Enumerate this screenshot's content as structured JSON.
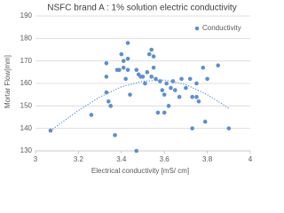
{
  "chart_data": {
    "type": "scatter",
    "title": "NSFC brand A : 1% solution electric conductivity",
    "x_label": "Electrical conductivity [mS/ cm]",
    "y_label": "Mortar Flow[mm]",
    "xlim": [
      3,
      4
    ],
    "xticks": [
      3,
      3.2,
      3.4,
      3.6,
      3.8,
      4
    ],
    "ylim": [
      130,
      190
    ],
    "yticks": [
      130,
      140,
      150,
      160,
      170,
      180,
      190
    ],
    "grid": true,
    "legend": "top-right",
    "series": [
      {
        "name": "Conductivity",
        "color": "#5b8fd0",
        "x": [
          3.07,
          3.26,
          3.33,
          3.33,
          3.33,
          3.34,
          3.35,
          3.37,
          3.38,
          3.39,
          3.4,
          3.41,
          3.41,
          3.42,
          3.43,
          3.43,
          3.43,
          3.44,
          3.47,
          3.47,
          3.48,
          3.49,
          3.5,
          3.51,
          3.52,
          3.53,
          3.54,
          3.54,
          3.55,
          3.55,
          3.56,
          3.57,
          3.58,
          3.59,
          3.6,
          3.6,
          3.61,
          3.62,
          3.63,
          3.64,
          3.65,
          3.67,
          3.68,
          3.7,
          3.72,
          3.73,
          3.73,
          3.75,
          3.76,
          3.78,
          3.79,
          3.8,
          3.85,
          3.9,
          3.75
        ],
        "values": [
          139,
          146,
          169,
          163,
          156,
          152,
          150,
          137,
          166,
          166,
          173,
          167,
          170,
          162,
          178,
          171,
          166,
          155,
          130,
          166,
          164,
          163,
          163,
          160,
          165,
          173,
          175,
          163,
          167,
          172,
          162,
          147,
          161,
          157,
          147,
          155,
          160,
          150,
          158,
          161,
          157,
          154,
          162,
          158,
          162,
          140,
          154,
          154,
          152,
          167,
          143,
          162,
          168,
          140,
          160
        ]
      }
    ],
    "trendline": {
      "color": "#5b8fd0",
      "x": [
        3.07,
        3.2,
        3.3,
        3.4,
        3.5,
        3.6,
        3.7,
        3.8,
        3.9
      ],
      "values": [
        139,
        148,
        154,
        158.5,
        161,
        161.5,
        159.5,
        155,
        149
      ]
    }
  }
}
